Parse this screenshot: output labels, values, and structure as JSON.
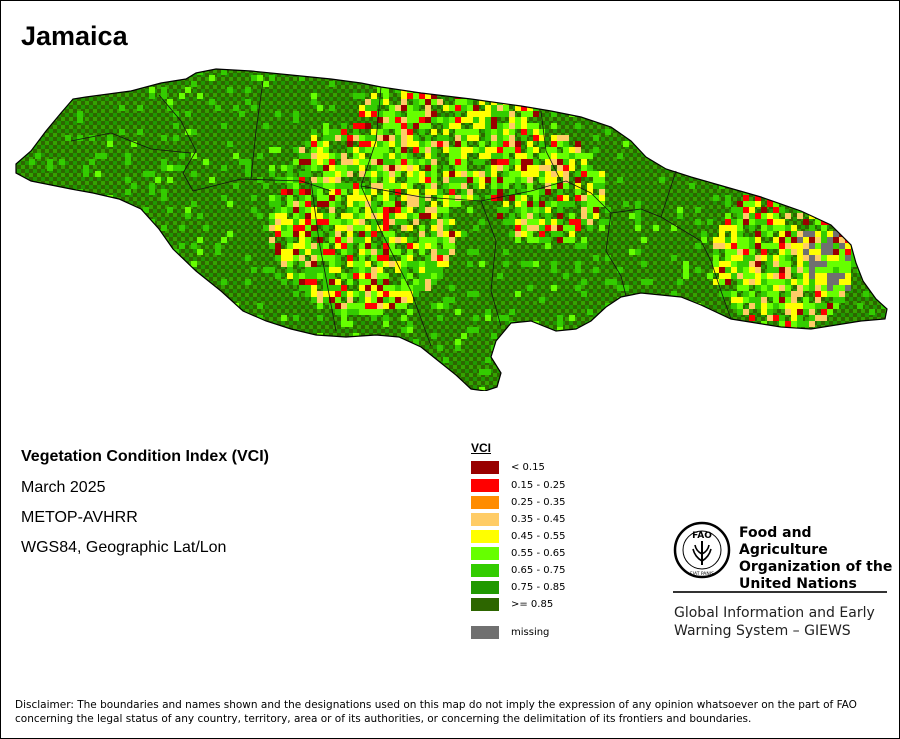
{
  "title": "Jamaica",
  "info": {
    "index_name": "Vegetation Condition Index (VCI)",
    "period": "March 2025",
    "sensor": "METOP-AVHRR",
    "projection": "WGS84, Geographic Lat/Lon"
  },
  "legend": {
    "title": "VCI",
    "classes": [
      {
        "label": "< 0.15",
        "color": "#990000"
      },
      {
        "label": "0.15 - 0.25",
        "color": "#ff0000"
      },
      {
        "label": "0.25 - 0.35",
        "color": "#ff8c00"
      },
      {
        "label": "0.35 - 0.45",
        "color": "#ffcc66"
      },
      {
        "label": "0.45 - 0.55",
        "color": "#ffff00"
      },
      {
        "label": "0.55 - 0.65",
        "color": "#66ff00"
      },
      {
        "label": "0.65 - 0.75",
        "color": "#33cc00"
      },
      {
        "label": "0.75 - 0.85",
        "color": "#209900"
      },
      {
        "label": ">= 0.85",
        "color": "#2d6600"
      }
    ],
    "missing": {
      "label": "missing",
      "color": "#707070"
    }
  },
  "org": {
    "name": "Food and Agriculture Organization of the United Nations",
    "name_lines": [
      "Food and Agriculture",
      "Organization of the",
      "United Nations"
    ],
    "logo_text": "FAO",
    "logo_motto": "FIAT PANIS",
    "system_lines": [
      "Global Information and Early",
      "Warning System – GIEWS"
    ]
  },
  "disclaimer": "Disclaimer: The boundaries and names shown and the designations used on this map do not imply the expression of any opinion whatsoever on the part of FAO concerning the legal status of any country, territory, area or of its authorities, or concerning the delimitation of its frontiers and boundaries."
}
